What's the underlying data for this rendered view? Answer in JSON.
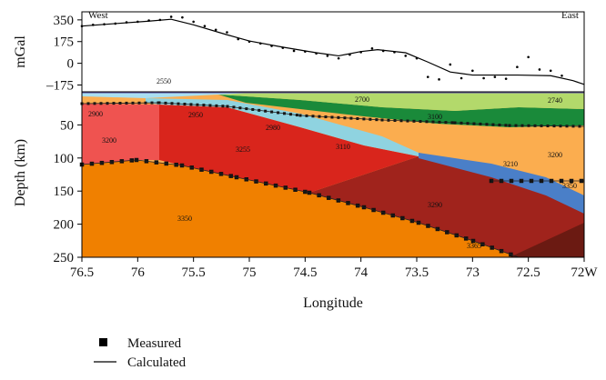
{
  "chart_data": {
    "type": "gravity-model",
    "corner_labels": [
      "West",
      "East"
    ],
    "y_label": "mGal",
    "depth_label": "Depth (km)",
    "x_label": "Longitude",
    "xlim": [
      76.5,
      72
    ],
    "xticks": [
      76.5,
      76,
      75.5,
      75,
      74.5,
      74,
      73.5,
      73,
      72.5,
      {
        "value": 72,
        "label": "72W"
      }
    ],
    "ylim": [
      -230,
      415
    ],
    "yticks": [
      350,
      175,
      0,
      {
        "value": -175,
        "label": "–175"
      }
    ],
    "depth_lim": [
      0,
      250
    ],
    "depth_ticks": [
      50,
      100,
      150,
      200,
      250
    ],
    "series": [
      {
        "name": "Measured",
        "color": "#000000",
        "x": [
          76.5,
          76.4,
          76.3,
          76.2,
          76.1,
          76.0,
          75.9,
          75.8,
          75.7,
          75.6,
          75.5,
          75.4,
          75.3,
          75.2,
          75.1,
          75.0,
          74.9,
          74.8,
          74.7,
          74.6,
          74.5,
          74.4,
          74.3,
          74.2,
          74.1,
          74.0,
          73.9,
          73.8,
          73.7,
          73.6,
          73.5,
          73.4,
          73.3,
          73.2,
          73.1,
          73.0,
          72.9,
          72.8,
          72.7,
          72.6,
          72.5,
          72.4,
          72.3,
          72.2
        ],
        "values": [
          300,
          310,
          315,
          320,
          330,
          335,
          345,
          350,
          375,
          370,
          335,
          300,
          270,
          250,
          195,
          175,
          160,
          140,
          125,
          100,
          95,
          80,
          60,
          40,
          70,
          90,
          120,
          100,
          90,
          60,
          40,
          -110,
          -130,
          -10,
          -120,
          -60,
          -120,
          -110,
          -125,
          -30,
          50,
          -50,
          -60,
          -100
        ]
      },
      {
        "name": "Calculated",
        "color": "#000000",
        "x": [
          76.5,
          76.2,
          75.9,
          75.7,
          75.5,
          75.2,
          75.0,
          74.7,
          74.4,
          74.2,
          74.0,
          73.85,
          73.6,
          73.4,
          73.2,
          73.0,
          72.6,
          72.3,
          72.1,
          72.0
        ],
        "values": [
          300,
          320,
          340,
          355,
          310,
          230,
          180,
          130,
          85,
          60,
          95,
          110,
          85,
          10,
          -70,
          -95,
          -95,
          -100,
          -140,
          -170
        ]
      }
    ],
    "bodies": [
      2550,
      2900,
      2950,
      2980,
      2700,
      2740,
      3100,
      3200,
      3255,
      3110,
      3210,
      3200,
      3350,
      3290,
      3350,
      3365
    ]
  }
}
